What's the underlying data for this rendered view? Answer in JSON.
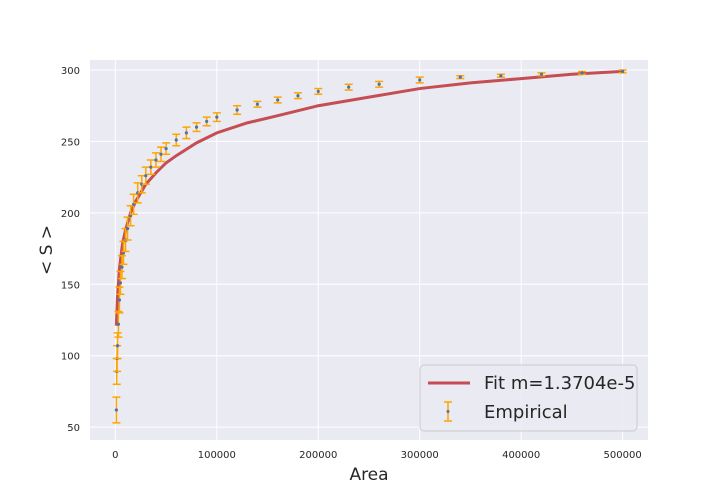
{
  "chart_data": {
    "type": "scatter",
    "title": "",
    "xlabel": "Area",
    "ylabel": "< S >",
    "xlim": [
      -25000,
      525000
    ],
    "ylim": [
      41,
      307
    ],
    "x_ticks": [
      0,
      100000,
      200000,
      300000,
      400000,
      500000
    ],
    "x_tick_labels": [
      "0",
      "100000",
      "200000",
      "300000",
      "400000",
      "500000"
    ],
    "y_ticks": [
      50,
      100,
      150,
      200,
      250,
      300
    ],
    "y_tick_labels": [
      "50",
      "100",
      "150",
      "200",
      "250",
      "300"
    ],
    "grid": true,
    "legend_position": "lower-right",
    "colors": {
      "background": "#eaeaf2",
      "grid": "#ffffff",
      "fit": "#c44e52",
      "empirical_marker": "#4c72b0",
      "errorbar": "#ffa500"
    },
    "series": [
      {
        "name": "Fit m=1.3704e-5",
        "kind": "line",
        "x": [
          1000,
          2000,
          4000,
          7000,
          10000,
          15000,
          20000,
          30000,
          40000,
          50000,
          60000,
          80000,
          100000,
          130000,
          160000,
          200000,
          250000,
          300000,
          350000,
          400000,
          450000,
          500000
        ],
        "y": [
          121,
          140,
          161,
          178,
          188,
          200,
          208,
          220,
          228,
          235,
          240,
          249,
          256,
          263,
          268,
          275,
          281,
          287,
          291,
          294,
          297,
          299
        ]
      },
      {
        "name": "Empirical",
        "kind": "errorbar",
        "x": [
          1000,
          1300,
          1700,
          2200,
          3000,
          4000,
          5000,
          6500,
          8000,
          10000,
          12000,
          15000,
          18000,
          22000,
          26000,
          30000,
          35000,
          40000,
          45000,
          50000,
          60000,
          70000,
          80000,
          90000,
          100000,
          120000,
          140000,
          160000,
          180000,
          200000,
          230000,
          260000,
          300000,
          340000,
          380000,
          420000,
          460000,
          500000
        ],
        "y": [
          62,
          89,
          98,
          107,
          122,
          139,
          151,
          162,
          172,
          181,
          189,
          198,
          206,
          214,
          220,
          226,
          232,
          237,
          241,
          245,
          251,
          256,
          260,
          264,
          267,
          272,
          276,
          279,
          282,
          285,
          288,
          290,
          293,
          295,
          296,
          297,
          298,
          299
        ],
        "err": [
          9,
          9,
          9,
          9,
          9,
          9,
          8,
          8,
          8,
          8,
          8,
          7,
          7,
          7,
          6,
          6,
          5,
          5,
          5,
          4,
          4,
          4,
          3,
          3,
          3,
          3,
          2,
          2,
          2,
          2,
          2,
          2,
          2,
          1,
          1,
          1,
          1,
          1
        ]
      }
    ]
  }
}
